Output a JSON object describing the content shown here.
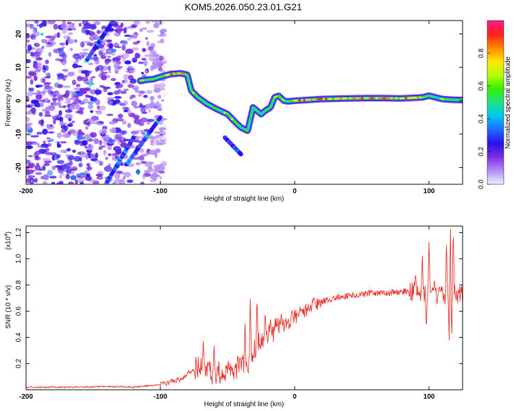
{
  "chart_data": [
    {
      "type": "heatmap",
      "title": "KOM5.2026.050.23.01.G21",
      "xlabel": "Height of straight line (km)",
      "ylabel": "Frequency (Hz)",
      "xlim": [
        -200,
        125
      ],
      "ylim": [
        -25,
        24
      ],
      "xticks": [
        -200,
        -100,
        0,
        100
      ],
      "yticks": [
        20,
        10,
        0,
        -10,
        -20
      ],
      "colorbar": {
        "label": "Normalized spectral amplitude",
        "range": [
          0,
          1
        ],
        "ticks": [
          "0.0",
          "0.2",
          "0.4",
          "0.6",
          "0.8"
        ],
        "colormap": [
          "#f2eefb",
          "#b58df5",
          "#7a2fe0",
          "#2a10f0",
          "#1f6bff",
          "#00c8f0",
          "#1ee08a",
          "#33f000",
          "#b4ff00",
          "#ffe600",
          "#ff8a00",
          "#ff2020",
          "#ff1a8c"
        ]
      },
      "features": {
        "ridge_trace": {
          "x": [
            -115,
            -105,
            -97,
            -92,
            -85,
            -80,
            -77,
            -72,
            -65,
            -58,
            -50,
            -44,
            -40,
            -35,
            -31,
            -28,
            -25,
            -22,
            -18,
            -15,
            -12,
            -8,
            -5,
            0,
            20,
            40,
            60,
            80,
            95,
            100,
            110,
            117,
            125
          ],
          "y": [
            6,
            6.5,
            7.5,
            8,
            8.2,
            7.8,
            3,
            1,
            -1,
            -2.5,
            -4,
            -6.5,
            -8,
            -9,
            -2,
            -3,
            -4,
            -3,
            -2,
            1,
            1.5,
            0,
            -0.2,
            0,
            0.5,
            0.7,
            0.8,
            0.7,
            1,
            1.5,
            0.5,
            0.3,
            0.2
          ],
          "peak_from_x": 0,
          "peak_to_x": 95
        },
        "rising_streaks": [
          {
            "x": [
              -140,
              -120
            ],
            "y": [
              -24.5,
              -11
            ]
          },
          {
            "x": [
              -125,
              -100
            ],
            "y": [
              -19,
              -5
            ]
          },
          {
            "x": [
              -155,
              -135
            ],
            "y": [
              12,
              24
            ]
          },
          {
            "x": [
              -52,
              -40
            ],
            "y": [
              -11,
              -16
            ]
          }
        ],
        "noise_region_x": [
          -200,
          -97
        ]
      }
    },
    {
      "type": "line",
      "title": "",
      "xlabel": "Height of straight line (km)",
      "ylabel": "SNR (10 * v/v)",
      "yscale_label": "(x10",
      "yscale_exp": "4",
      "xlim": [
        -200,
        125
      ],
      "ylim": [
        0,
        1.25
      ],
      "xticks": [
        -200,
        -100,
        0,
        100
      ],
      "yticks": [
        "0.2",
        "0.4",
        "0.6",
        "0.8",
        "1.0",
        "1.2"
      ],
      "color": "#e8312a",
      "series": [
        {
          "name": "SNR",
          "x": [
            -200,
            -180,
            -160,
            -140,
            -120,
            -110,
            -100,
            -95,
            -90,
            -85,
            -80,
            -75,
            -70,
            -65,
            -60,
            -55,
            -50,
            -45,
            -40,
            -35,
            -30,
            -25,
            -20,
            -15,
            -10,
            -5,
            0,
            10,
            20,
            30,
            40,
            50,
            60,
            70,
            80,
            90,
            95,
            100,
            105,
            110,
            115,
            120,
            125
          ],
          "y": [
            0.02,
            0.02,
            0.02,
            0.025,
            0.02,
            0.03,
            0.04,
            0.05,
            0.07,
            0.08,
            0.12,
            0.16,
            0.2,
            0.15,
            0.12,
            0.14,
            0.13,
            0.14,
            0.2,
            0.18,
            0.3,
            0.38,
            0.4,
            0.45,
            0.48,
            0.52,
            0.56,
            0.62,
            0.67,
            0.7,
            0.72,
            0.73,
            0.74,
            0.74,
            0.75,
            0.75,
            0.74,
            0.74,
            0.73,
            0.72,
            0.73,
            0.73,
            0.73
          ],
          "spikes": [
            {
              "x": -68,
              "y": 0.38
            },
            {
              "x": -60,
              "y": 0.34
            },
            {
              "x": -37,
              "y": 0.55
            },
            {
              "x": -33,
              "y": 0.73
            },
            {
              "x": -28,
              "y": 0.72
            },
            {
              "x": -22,
              "y": 0.62
            },
            {
              "x": -18,
              "y": 0.54
            },
            {
              "x": -10,
              "y": 0.58
            },
            {
              "x": -2,
              "y": 0.62
            },
            {
              "x": 5,
              "y": 0.62
            },
            {
              "x": 90,
              "y": 0.9
            },
            {
              "x": 95,
              "y": 1.05
            },
            {
              "x": 98,
              "y": 0.45
            },
            {
              "x": 100,
              "y": 1.16
            },
            {
              "x": 104,
              "y": 0.85
            },
            {
              "x": 106,
              "y": 0.65
            },
            {
              "x": 113,
              "y": 1.15
            },
            {
              "x": 115,
              "y": 0.38
            },
            {
              "x": 116,
              "y": 1.25
            },
            {
              "x": 117,
              "y": 0.4
            },
            {
              "x": 118,
              "y": 1.25
            }
          ]
        }
      ]
    }
  ]
}
